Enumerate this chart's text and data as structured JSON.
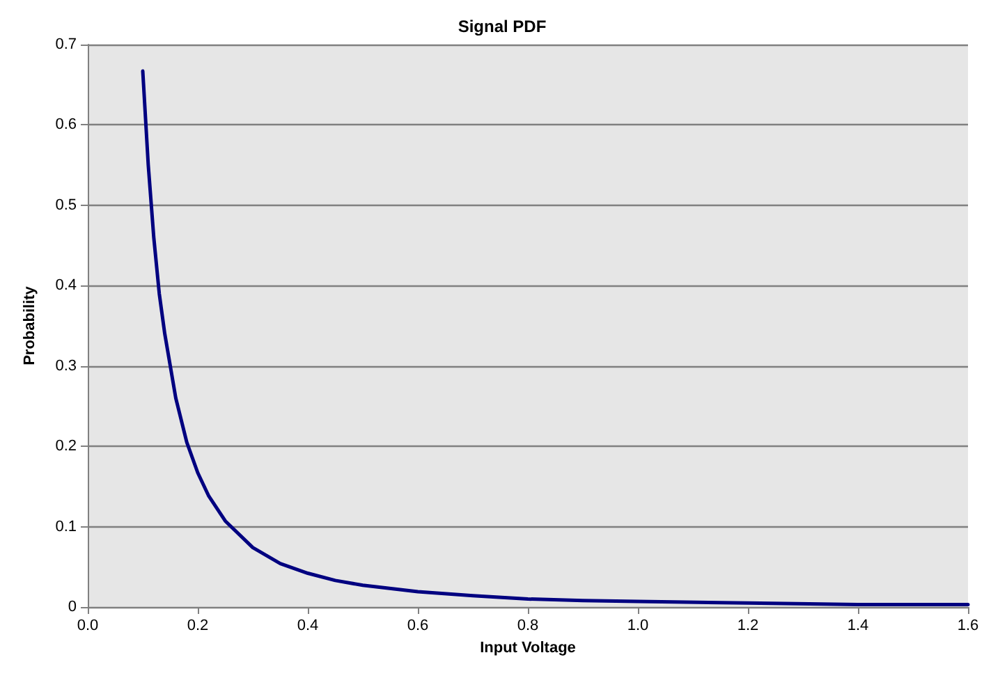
{
  "chart_data": {
    "type": "line",
    "title": "Signal PDF",
    "xlabel": "Input Voltage",
    "ylabel": "Probability",
    "series": [
      {
        "color": "#000080",
        "x": [
          0.1,
          0.11,
          0.12,
          0.13,
          0.14,
          0.16,
          0.18,
          0.2,
          0.22,
          0.25,
          0.3,
          0.35,
          0.4,
          0.45,
          0.5,
          0.6,
          0.7,
          0.8,
          0.9,
          1.0,
          1.2,
          1.4,
          1.6
        ],
        "values": [
          0.667,
          0.55,
          0.46,
          0.39,
          0.34,
          0.26,
          0.205,
          0.167,
          0.138,
          0.107,
          0.074,
          0.054,
          0.042,
          0.033,
          0.027,
          0.019,
          0.014,
          0.01,
          0.008,
          0.007,
          0.005,
          0.003,
          0.003
        ]
      }
    ],
    "xlim": [
      0,
      1.6
    ],
    "ylim": [
      0,
      0.7
    ],
    "xticks": [
      {
        "value": 0,
        "label": "0.0"
      },
      0.2,
      0.4,
      0.6,
      0.8,
      {
        "value": 1,
        "label": "1.0"
      },
      1.2,
      1.4,
      1.6
    ],
    "yticks": [
      0,
      0.1,
      0.2,
      0.3,
      0.4,
      0.5,
      0.6,
      0.7
    ],
    "grid": "y",
    "marker": "none",
    "line_style": "solid"
  }
}
